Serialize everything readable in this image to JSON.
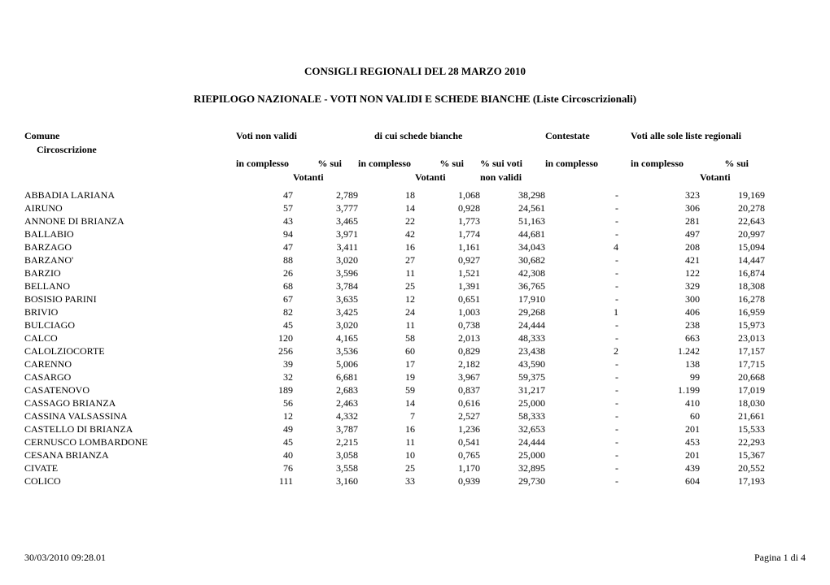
{
  "title1": "CONSIGLI REGIONALI DEL  28  MARZO 2010",
  "title2": "RIEPILOGO NAZIONALE - VOTI NON VALIDI E SCHEDE BIANCHE (Liste Circoscrizionali)",
  "headers": {
    "comune": "Comune",
    "circoscrizione": "Circoscrizione",
    "voti_non_validi": "Voti non validi",
    "schede_bianche": "di cui schede bianche",
    "contestate": "Contestate",
    "voti_liste": "Voti alle sole liste regionali",
    "in_complesso": "in complesso",
    "p_sui": "% sui",
    "p_sui_voti": "% sui voti",
    "votanti": "Votanti",
    "non_validi": "non validi"
  },
  "rows": [
    {
      "comune": "ABBADIA LARIANA",
      "c1": "47",
      "c2": "2,789",
      "c3": "18",
      "c4": "1,068",
      "c5": "38,298",
      "c6": "-",
      "c7": "323",
      "c8": "19,169"
    },
    {
      "comune": "AIRUNO",
      "c1": "57",
      "c2": "3,777",
      "c3": "14",
      "c4": "0,928",
      "c5": "24,561",
      "c6": "-",
      "c7": "306",
      "c8": "20,278"
    },
    {
      "comune": "ANNONE DI BRIANZA",
      "c1": "43",
      "c2": "3,465",
      "c3": "22",
      "c4": "1,773",
      "c5": "51,163",
      "c6": "-",
      "c7": "281",
      "c8": "22,643"
    },
    {
      "comune": "BALLABIO",
      "c1": "94",
      "c2": "3,971",
      "c3": "42",
      "c4": "1,774",
      "c5": "44,681",
      "c6": "-",
      "c7": "497",
      "c8": "20,997"
    },
    {
      "comune": "BARZAGO",
      "c1": "47",
      "c2": "3,411",
      "c3": "16",
      "c4": "1,161",
      "c5": "34,043",
      "c6": "4",
      "c7": "208",
      "c8": "15,094"
    },
    {
      "comune": "BARZANO'",
      "c1": "88",
      "c2": "3,020",
      "c3": "27",
      "c4": "0,927",
      "c5": "30,682",
      "c6": "-",
      "c7": "421",
      "c8": "14,447"
    },
    {
      "comune": "BARZIO",
      "c1": "26",
      "c2": "3,596",
      "c3": "11",
      "c4": "1,521",
      "c5": "42,308",
      "c6": "-",
      "c7": "122",
      "c8": "16,874"
    },
    {
      "comune": "BELLANO",
      "c1": "68",
      "c2": "3,784",
      "c3": "25",
      "c4": "1,391",
      "c5": "36,765",
      "c6": "-",
      "c7": "329",
      "c8": "18,308"
    },
    {
      "comune": "BOSISIO PARINI",
      "c1": "67",
      "c2": "3,635",
      "c3": "12",
      "c4": "0,651",
      "c5": "17,910",
      "c6": "-",
      "c7": "300",
      "c8": "16,278"
    },
    {
      "comune": "BRIVIO",
      "c1": "82",
      "c2": "3,425",
      "c3": "24",
      "c4": "1,003",
      "c5": "29,268",
      "c6": "1",
      "c7": "406",
      "c8": "16,959"
    },
    {
      "comune": "BULCIAGO",
      "c1": "45",
      "c2": "3,020",
      "c3": "11",
      "c4": "0,738",
      "c5": "24,444",
      "c6": "-",
      "c7": "238",
      "c8": "15,973"
    },
    {
      "comune": "CALCO",
      "c1": "120",
      "c2": "4,165",
      "c3": "58",
      "c4": "2,013",
      "c5": "48,333",
      "c6": "-",
      "c7": "663",
      "c8": "23,013"
    },
    {
      "comune": "CALOLZIOCORTE",
      "c1": "256",
      "c2": "3,536",
      "c3": "60",
      "c4": "0,829",
      "c5": "23,438",
      "c6": "2",
      "c7": "1.242",
      "c8": "17,157"
    },
    {
      "comune": "CARENNO",
      "c1": "39",
      "c2": "5,006",
      "c3": "17",
      "c4": "2,182",
      "c5": "43,590",
      "c6": "-",
      "c7": "138",
      "c8": "17,715"
    },
    {
      "comune": "CASARGO",
      "c1": "32",
      "c2": "6,681",
      "c3": "19",
      "c4": "3,967",
      "c5": "59,375",
      "c6": "-",
      "c7": "99",
      "c8": "20,668"
    },
    {
      "comune": "CASATENOVO",
      "c1": "189",
      "c2": "2,683",
      "c3": "59",
      "c4": "0,837",
      "c5": "31,217",
      "c6": "-",
      "c7": "1.199",
      "c8": "17,019"
    },
    {
      "comune": "CASSAGO BRIANZA",
      "c1": "56",
      "c2": "2,463",
      "c3": "14",
      "c4": "0,616",
      "c5": "25,000",
      "c6": "-",
      "c7": "410",
      "c8": "18,030"
    },
    {
      "comune": "CASSINA VALSASSINA",
      "c1": "12",
      "c2": "4,332",
      "c3": "7",
      "c4": "2,527",
      "c5": "58,333",
      "c6": "-",
      "c7": "60",
      "c8": "21,661"
    },
    {
      "comune": "CASTELLO DI BRIANZA",
      "c1": "49",
      "c2": "3,787",
      "c3": "16",
      "c4": "1,236",
      "c5": "32,653",
      "c6": "-",
      "c7": "201",
      "c8": "15,533"
    },
    {
      "comune": "CERNUSCO LOMBARDONE",
      "c1": "45",
      "c2": "2,215",
      "c3": "11",
      "c4": "0,541",
      "c5": "24,444",
      "c6": "-",
      "c7": "453",
      "c8": "22,293"
    },
    {
      "comune": "CESANA BRIANZA",
      "c1": "40",
      "c2": "3,058",
      "c3": "10",
      "c4": "0,765",
      "c5": "25,000",
      "c6": "-",
      "c7": "201",
      "c8": "15,367"
    },
    {
      "comune": "CIVATE",
      "c1": "76",
      "c2": "3,558",
      "c3": "25",
      "c4": "1,170",
      "c5": "32,895",
      "c6": "-",
      "c7": "439",
      "c8": "20,552"
    },
    {
      "comune": "COLICO",
      "c1": "111",
      "c2": "3,160",
      "c3": "33",
      "c4": "0,939",
      "c5": "29,730",
      "c6": "-",
      "c7": "604",
      "c8": "17,193"
    }
  ],
  "footer_left": "30/03/2010 09:28.01",
  "footer_right": "Pagina 1 di 4"
}
